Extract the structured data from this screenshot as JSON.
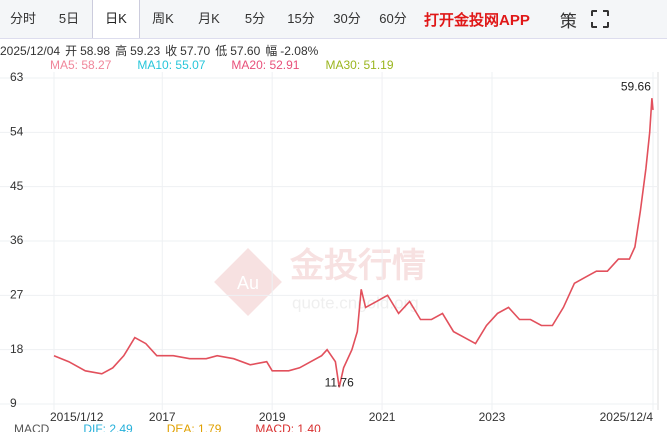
{
  "tabs": [
    "分时",
    "5日",
    "日K",
    "周K",
    "月K",
    "5分",
    "15分",
    "30分",
    "60分"
  ],
  "selected_tab": 2,
  "app_link": "打开金投网APP",
  "strategy_icon": "策",
  "quote": {
    "date": "2025/12/04",
    "items": [
      {
        "label": "开",
        "value": "58.98"
      },
      {
        "label": "高",
        "value": "59.23"
      },
      {
        "label": "收",
        "value": "57.70"
      },
      {
        "label": "低",
        "value": "57.60"
      },
      {
        "label": "幅",
        "value": "-2.08%"
      }
    ]
  },
  "ma_legend": [
    {
      "text": "MA5: 58.27",
      "color": "#f0869a"
    },
    {
      "text": "MA10: 55.07",
      "color": "#26c6da"
    },
    {
      "text": "MA20: 52.91",
      "color": "#e8507a"
    },
    {
      "text": "MA30: 51.19",
      "color": "#9ab51e"
    }
  ],
  "macd_legend": [
    {
      "text": "MACD",
      "color": "#555555"
    },
    {
      "text": "DIF: 2.49",
      "color": "#26b0da"
    },
    {
      "text": "DEA: 1.79",
      "color": "#e0a000"
    },
    {
      "text": "MACD: 1.40",
      "color": "#d83030"
    }
  ],
  "watermark": {
    "title": "金投行情",
    "url": "quote.cngold.org",
    "logo": "Au"
  },
  "chart_data": {
    "type": "line",
    "x": [
      2015.03,
      2015.3,
      2015.6,
      2015.9,
      2016.1,
      2016.3,
      2016.5,
      2016.7,
      2016.9,
      2017.2,
      2017.5,
      2017.8,
      2018.0,
      2018.3,
      2018.6,
      2018.9,
      2019.0,
      2019.3,
      2019.5,
      2019.9,
      2020.0,
      2020.15,
      2020.22,
      2020.3,
      2020.45,
      2020.55,
      2020.62,
      2020.7,
      2020.9,
      2021.1,
      2021.3,
      2021.5,
      2021.7,
      2021.9,
      2022.1,
      2022.3,
      2022.5,
      2022.7,
      2022.9,
      2023.1,
      2023.3,
      2023.5,
      2023.7,
      2023.9,
      2024.1,
      2024.3,
      2024.5,
      2024.7,
      2024.9,
      2025.1,
      2025.3,
      2025.5,
      2025.6,
      2025.7,
      2025.8,
      2025.87,
      2025.91,
      2025.93
    ],
    "series": [
      {
        "name": "收",
        "color": "#e2505c",
        "values": [
          17,
          16,
          14.5,
          14,
          15,
          17,
          20,
          19,
          17,
          17,
          16.5,
          16.5,
          17,
          16.5,
          15.5,
          16,
          14.5,
          14.5,
          15,
          17,
          18,
          16,
          11.76,
          15,
          18,
          21,
          28,
          25,
          26,
          27,
          24,
          26,
          23,
          23,
          24,
          21,
          20,
          19,
          22,
          24,
          25,
          23,
          23,
          22,
          22,
          25,
          29,
          30,
          31,
          31,
          33,
          33,
          35,
          41,
          48,
          54,
          59.66,
          57.7
        ]
      }
    ],
    "annotations": [
      {
        "text": "59.66",
        "x": 2025.91,
        "y": 59.66
      },
      {
        "text": "11.76",
        "x": 2020.22,
        "y": 11.76
      }
    ],
    "xlim": [
      2015.03,
      2025.93
    ],
    "xticks": [
      {
        "value": 2015.03,
        "label": "2015/1/12"
      },
      2017,
      2019,
      2021,
      2023,
      {
        "value": 2025.93,
        "label": "2025/12/4"
      }
    ],
    "ylim": [
      9,
      63
    ],
    "yticks": [
      9,
      18,
      27,
      36,
      45,
      54,
      63
    ],
    "grid": true
  }
}
